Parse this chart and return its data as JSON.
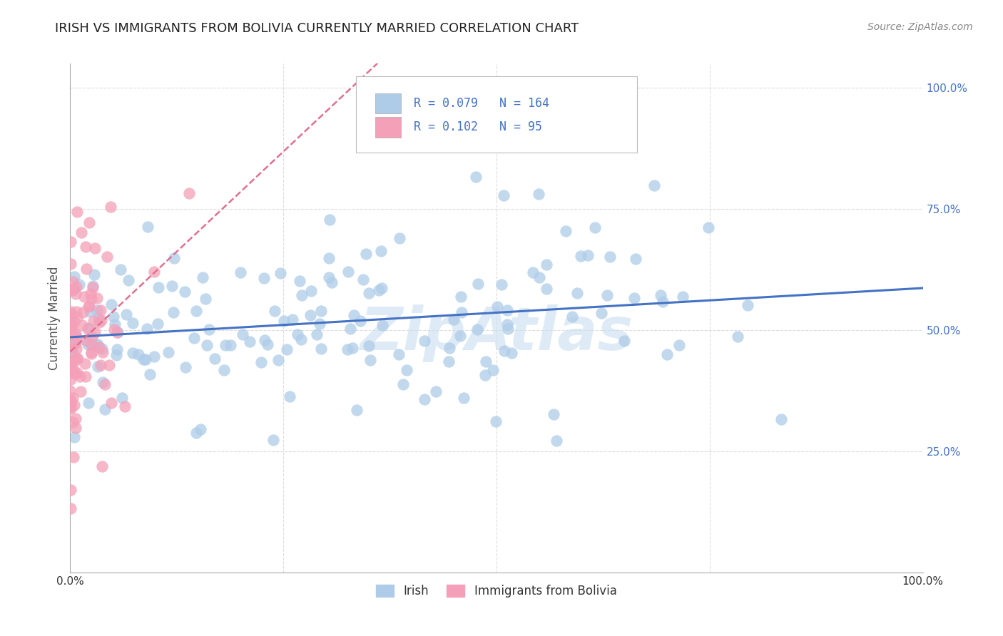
{
  "title": "IRISH VS IMMIGRANTS FROM BOLIVIA CURRENTLY MARRIED CORRELATION CHART",
  "source_text": "Source: ZipAtlas.com",
  "ylabel": "Currently Married",
  "watermark": "ZipAtlas",
  "irish_R": 0.079,
  "irish_N": 164,
  "bolivia_R": 0.102,
  "bolivia_N": 95,
  "irish_color": "#aecce8",
  "bolivia_color": "#f4a0b8",
  "irish_line_color": "#4472c4",
  "bolivia_line_color": "#e07090",
  "legend_label_irish": "Irish",
  "legend_label_bolivia": "Immigrants from Bolivia",
  "xlim": [
    0.0,
    1.0
  ],
  "ylim": [
    0.0,
    1.0
  ],
  "x_ticks": [
    0.0,
    0.25,
    0.5,
    0.75,
    1.0
  ],
  "x_tick_labels": [
    "0.0%",
    "",
    "",
    "",
    "100.0%"
  ],
  "y_ticks": [
    0.25,
    0.5,
    0.75,
    1.0
  ],
  "y_tick_labels": [
    "25.0%",
    "50.0%",
    "75.0%",
    "100.0%"
  ],
  "title_color": "#222222",
  "grid_color": "#dddddd",
  "stat_color": "#4472c4",
  "background_color": "#ffffff",
  "watermark_color": "#c8dff0"
}
